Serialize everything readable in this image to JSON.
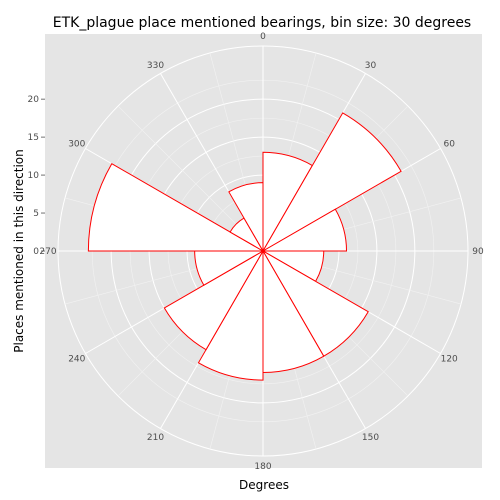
{
  "chart_data": {
    "type": "bar",
    "projection": "polar",
    "title": "ETK_plague place mentioned bearings, bin size: 30 degrees",
    "xlabel": "Degrees",
    "ylabel": "Places mentioned in this direction",
    "categories": [
      "0",
      "30",
      "60",
      "90",
      "120",
      "150",
      "180",
      "210",
      "240",
      "270",
      "300",
      "330"
    ],
    "values": [
      13,
      21,
      11,
      8,
      16,
      16,
      17,
      15,
      9,
      23,
      5,
      9
    ],
    "angle_ticks": [
      "0",
      "30",
      "60",
      "90",
      "120",
      "150",
      "180",
      "210",
      "240",
      "270",
      "300",
      "330"
    ],
    "radial_ticks": [
      "0",
      "5",
      "10",
      "15",
      "20"
    ],
    "radial_tick_values": [
      0,
      5,
      10,
      15,
      20
    ],
    "rlim": [
      0,
      27
    ],
    "grid": true,
    "bar_fill": "#ffffff",
    "bar_stroke": "#ff0000",
    "panel_color": "#e5e5e5",
    "grid_color": "#ffffff"
  }
}
